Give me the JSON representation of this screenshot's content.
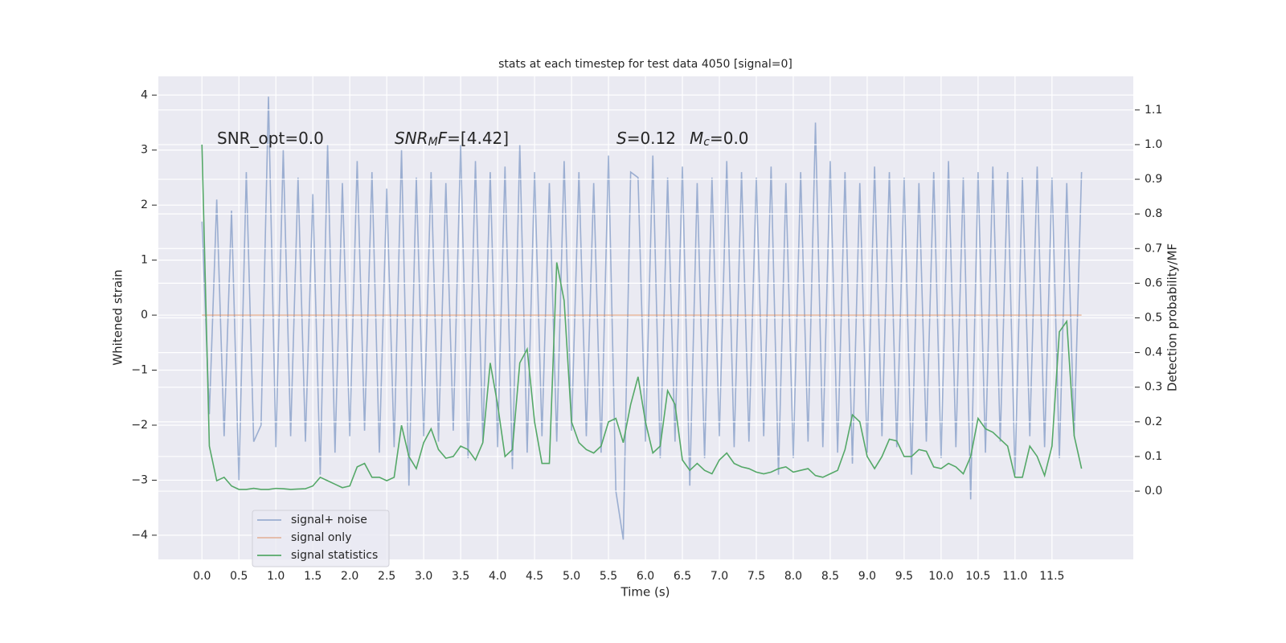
{
  "chart_data": {
    "type": "line",
    "title": "stats at each timestep for test data 4050 [signal=0]",
    "xlabel": "Time (s)",
    "ylabel": "Whitened strain",
    "y2label": "Detection probability/MF",
    "annotations": [
      [
        {
          "text": "SNR_opt=0.0"
        }
      ],
      [
        {
          "text": "SNR",
          "italic": true
        },
        {
          "text": "M",
          "italic": true,
          "sub": true
        },
        {
          "text": "F",
          "italic": true
        },
        {
          "text": "=[4.42]"
        }
      ],
      [
        {
          "text": "S",
          "italic": true
        },
        {
          "text": "=0.12"
        }
      ],
      [
        {
          "text": "M",
          "italic": true
        },
        {
          "text": "c",
          "italic": true,
          "sub": true
        },
        {
          "text": "=0.0"
        }
      ]
    ],
    "x": [
      0,
      0.1,
      0.2,
      0.3,
      0.4,
      0.5,
      0.6,
      0.7,
      0.8,
      0.9,
      1,
      1.1,
      1.2,
      1.3,
      1.4,
      1.5,
      1.6,
      1.7,
      1.8,
      1.9,
      2,
      2.1,
      2.2,
      2.3,
      2.4,
      2.5,
      2.6,
      2.7,
      2.8,
      2.9,
      3,
      3.1,
      3.2,
      3.3,
      3.4,
      3.5,
      3.6,
      3.7,
      3.8,
      3.9,
      4,
      4.1,
      4.2,
      4.3,
      4.4,
      4.5,
      4.6,
      4.7,
      4.8,
      4.9,
      5,
      5.1,
      5.2,
      5.3,
      5.4,
      5.5,
      5.6,
      5.7,
      5.8,
      5.9,
      6,
      6.1,
      6.2,
      6.3,
      6.4,
      6.5,
      6.6,
      6.7,
      6.8,
      6.9,
      7,
      7.1,
      7.2,
      7.3,
      7.4,
      7.5,
      7.6,
      7.7,
      7.8,
      7.9,
      8,
      8.1,
      8.2,
      8.3,
      8.4,
      8.5,
      8.6,
      8.7,
      8.8,
      8.9,
      9,
      9.1,
      9.2,
      9.3,
      9.4,
      9.5,
      9.6,
      9.7,
      9.8,
      9.9,
      10,
      10.1,
      10.2,
      10.3,
      10.4,
      10.5,
      10.6,
      10.7,
      10.8,
      10.9,
      11,
      11.1,
      11.2,
      11.3,
      11.4,
      11.5,
      11.6,
      11.7,
      11.8,
      11.9
    ],
    "series": [
      {
        "name": "signal+ noise",
        "color": "#4c72b0",
        "opacity": 0.5,
        "values": [
          1.7,
          -1.8,
          2.1,
          -2.2,
          1.9,
          -3.0,
          2.6,
          -2.3,
          -2.0,
          3.97,
          -2.4,
          3.0,
          -2.2,
          2.5,
          -2.3,
          2.2,
          -2.9,
          3.1,
          -2.5,
          2.4,
          -2.2,
          2.8,
          -2.1,
          2.6,
          -2.5,
          2.3,
          -2.4,
          3.0,
          -3.1,
          2.5,
          -2.2,
          2.6,
          -2.3,
          2.4,
          -2.1,
          3.1,
          -2.6,
          2.8,
          -2.3,
          2.6,
          -2.4,
          2.7,
          -2.8,
          3.1,
          -2.5,
          2.6,
          -2.2,
          2.4,
          -2.3,
          2.8,
          -2.1,
          2.6,
          -2.2,
          2.4,
          -2.5,
          2.9,
          -3.2,
          -4.08,
          2.6,
          2.5,
          -2.3,
          2.9,
          -2.6,
          2.5,
          -2.3,
          2.7,
          -3.1,
          2.4,
          -2.6,
          2.5,
          -2.2,
          2.8,
          -2.4,
          2.6,
          -2.3,
          2.5,
          -2.2,
          2.7,
          -2.9,
          2.4,
          -2.6,
          2.6,
          -2.3,
          3.5,
          -2.4,
          2.8,
          -2.5,
          2.6,
          -2.7,
          2.4,
          -2.5,
          2.7,
          -2.2,
          2.6,
          -2.4,
          2.5,
          -2.9,
          2.4,
          -2.3,
          2.6,
          -2.6,
          2.8,
          -2.4,
          2.5,
          -3.35,
          2.6,
          -2.5,
          2.7,
          -2.3,
          2.6,
          -2.9,
          2.5,
          -2.2,
          2.7,
          -2.4,
          2.5,
          -2.6,
          2.4,
          -2.2,
          2.6
        ]
      },
      {
        "name": "signal only",
        "color": "#dd8452",
        "opacity": 0.5,
        "values": [
          0,
          0,
          0,
          0,
          0,
          0,
          0,
          0,
          0,
          0,
          0,
          0,
          0,
          0,
          0,
          0,
          0,
          0,
          0,
          0,
          0,
          0,
          0,
          0,
          0,
          0,
          0,
          0,
          0,
          0,
          0,
          0,
          0,
          0,
          0,
          0,
          0,
          0,
          0,
          0,
          0,
          0,
          0,
          0,
          0,
          0,
          0,
          0,
          0,
          0,
          0,
          0,
          0,
          0,
          0,
          0,
          0,
          0,
          0,
          0,
          0,
          0,
          0,
          0,
          0,
          0,
          0,
          0,
          0,
          0,
          0,
          0,
          0,
          0,
          0,
          0,
          0,
          0,
          0,
          0,
          0,
          0,
          0,
          0,
          0,
          0,
          0,
          0,
          0,
          0,
          0,
          0,
          0,
          0,
          0,
          0,
          0,
          0,
          0,
          0,
          0,
          0,
          0,
          0,
          0,
          0,
          0,
          0,
          0,
          0,
          0,
          0,
          0,
          0,
          0,
          0,
          0,
          0,
          0,
          0
        ]
      },
      {
        "name": "signal statistics",
        "color": "#55a868",
        "opacity": 1,
        "axis": "y2",
        "values": [
          1.0,
          0.13,
          0.03,
          0.04,
          0.015,
          0.005,
          0.005,
          0.008,
          0.005,
          0.005,
          0.008,
          0.007,
          0.005,
          0.006,
          0.007,
          0.015,
          0.04,
          0.03,
          0.02,
          0.01,
          0.015,
          0.07,
          0.08,
          0.04,
          0.04,
          0.03,
          0.04,
          0.19,
          0.1,
          0.065,
          0.14,
          0.18,
          0.12,
          0.095,
          0.1,
          0.13,
          0.12,
          0.09,
          0.14,
          0.37,
          0.25,
          0.1,
          0.12,
          0.37,
          0.41,
          0.2,
          0.08,
          0.08,
          0.66,
          0.55,
          0.2,
          0.14,
          0.12,
          0.11,
          0.13,
          0.2,
          0.21,
          0.14,
          0.25,
          0.33,
          0.2,
          0.11,
          0.13,
          0.29,
          0.25,
          0.09,
          0.06,
          0.08,
          0.06,
          0.05,
          0.09,
          0.11,
          0.08,
          0.07,
          0.065,
          0.055,
          0.05,
          0.055,
          0.065,
          0.07,
          0.055,
          0.06,
          0.065,
          0.045,
          0.04,
          0.05,
          0.06,
          0.12,
          0.22,
          0.2,
          0.1,
          0.065,
          0.1,
          0.15,
          0.145,
          0.1,
          0.1,
          0.12,
          0.115,
          0.07,
          0.065,
          0.08,
          0.07,
          0.05,
          0.1,
          0.21,
          0.18,
          0.17,
          0.15,
          0.13,
          0.04,
          0.04,
          0.13,
          0.1,
          0.045,
          0.13,
          0.46,
          0.49,
          0.16,
          0.065
        ]
      }
    ],
    "xlim": [
      -0.59,
      12.6
    ],
    "ylim": [
      -4.44,
      4.34
    ],
    "y2lim": [
      -0.197,
      1.197
    ],
    "xticks": [
      {
        "value": 0,
        "label": "0.0"
      },
      0.5,
      {
        "value": 1,
        "label": "1.0"
      },
      1.5,
      {
        "value": 2,
        "label": "2.0"
      },
      2.5,
      {
        "value": 3,
        "label": "3.0"
      },
      3.5,
      {
        "value": 4,
        "label": "4.0"
      },
      4.5,
      {
        "value": 5,
        "label": "5.0"
      },
      5.5,
      {
        "value": 6,
        "label": "6.0"
      },
      6.5,
      {
        "value": 7,
        "label": "7.0"
      },
      7.5,
      {
        "value": 8,
        "label": "8.0"
      },
      8.5,
      {
        "value": 9,
        "label": "9.0"
      },
      9.5,
      {
        "value": 10,
        "label": "10.0"
      },
      10.5,
      {
        "value": 11,
        "label": "11.0"
      },
      11.5
    ],
    "yticks": [
      {
        "value": -4,
        "label": "−4"
      },
      {
        "value": -3,
        "label": "−3"
      },
      {
        "value": -2,
        "label": "−2"
      },
      {
        "value": -1,
        "label": "−1"
      },
      0,
      1,
      2,
      3,
      4
    ],
    "y2ticks": [
      {
        "value": 0,
        "label": "0.0"
      },
      0.1,
      0.2,
      0.3,
      0.4,
      0.5,
      0.6,
      0.7,
      0.8,
      0.9,
      {
        "value": 1,
        "label": "1.0"
      },
      1.1
    ],
    "grid": true,
    "legend": "lower left"
  }
}
